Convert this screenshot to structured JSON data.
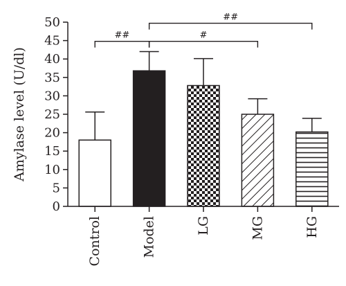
{
  "chart_data": {
    "type": "bar",
    "title": "",
    "xlabel": "",
    "ylabel": "Amylase level (U/dl)",
    "ylim": [
      0,
      50
    ],
    "yticks": [
      0,
      5,
      10,
      15,
      20,
      25,
      30,
      35,
      40,
      45,
      50
    ],
    "categories": [
      "Control",
      "Model",
      "LG",
      "MG",
      "HG"
    ],
    "values": [
      18,
      36.8,
      32.8,
      25,
      20.2
    ],
    "errors": [
      7.6,
      5.2,
      7.3,
      4.2,
      3.7
    ],
    "fills": [
      "white",
      "black",
      "checkerboard",
      "diagonal-hatch",
      "horizontal-lines"
    ],
    "grid": false,
    "legend": "none",
    "annotations": [
      {
        "from": "Control",
        "to": "Model",
        "label": "##",
        "y": 44.8
      },
      {
        "from": "Model",
        "to": "MG",
        "label": "#",
        "y": 44.8
      },
      {
        "from": "Model",
        "to": "HG",
        "label": "##",
        "y": 49.7
      }
    ]
  }
}
